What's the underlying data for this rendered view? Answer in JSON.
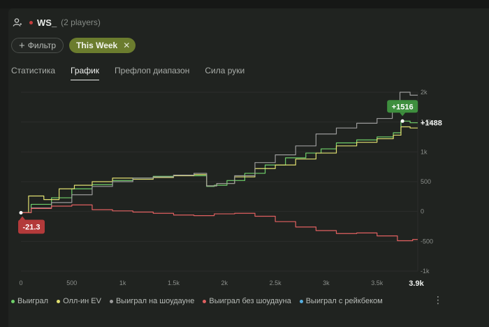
{
  "header": {
    "player_name": "WS_",
    "players_count": "(2 players)",
    "user_icon": "user-icon"
  },
  "filters": {
    "add_filter_label": "Фильтр",
    "active_filter_label": "This Week"
  },
  "tabs": [
    {
      "label": "Статистика",
      "active": false
    },
    {
      "label": "График",
      "active": true
    },
    {
      "label": "Префлоп диапазон",
      "active": false
    },
    {
      "label": "Сила руки",
      "active": false
    }
  ],
  "chart_data": {
    "type": "line",
    "x_ticks": [
      "0",
      "500",
      "1k",
      "1.5k",
      "2k",
      "2.5k",
      "3k",
      "3.5k",
      "3.9k"
    ],
    "y_ticks": [
      "2k",
      "1.5k",
      "1k",
      "500",
      "0",
      "-500",
      "-1k"
    ],
    "xlim": [
      0,
      3900
    ],
    "ylim": [
      -1000,
      2000
    ],
    "x_max_label": "3.9k",
    "callouts": {
      "peak_label": "+1516",
      "end_label": "+1488",
      "start_label": "-21.3"
    },
    "series": [
      {
        "name": "Выиграл",
        "color": "#6fd06a",
        "points": [
          [
            0,
            -21
          ],
          [
            200,
            120
          ],
          [
            400,
            230
          ],
          [
            600,
            380
          ],
          [
            800,
            450
          ],
          [
            1000,
            520
          ],
          [
            1200,
            560
          ],
          [
            1400,
            590
          ],
          [
            1600,
            610
          ],
          [
            1800,
            600
          ],
          [
            1850,
            420
          ],
          [
            1950,
            440
          ],
          [
            2100,
            520
          ],
          [
            2300,
            640
          ],
          [
            2500,
            780
          ],
          [
            2700,
            900
          ],
          [
            2900,
            980
          ],
          [
            3000,
            1050
          ],
          [
            3200,
            1150
          ],
          [
            3400,
            1200
          ],
          [
            3600,
            1250
          ],
          [
            3720,
            1320
          ],
          [
            3750,
            1516
          ],
          [
            3900,
            1488
          ]
        ]
      },
      {
        "name": "Олл-ин EV",
        "color": "#e0e070",
        "points": [
          [
            0,
            -21
          ],
          [
            150,
            260
          ],
          [
            300,
            200
          ],
          [
            450,
            380
          ],
          [
            600,
            440
          ],
          [
            800,
            500
          ],
          [
            1000,
            560
          ],
          [
            1200,
            540
          ],
          [
            1400,
            570
          ],
          [
            1600,
            600
          ],
          [
            1800,
            620
          ],
          [
            1850,
            430
          ],
          [
            2000,
            470
          ],
          [
            2200,
            580
          ],
          [
            2400,
            720
          ],
          [
            2600,
            780
          ],
          [
            2800,
            880
          ],
          [
            3000,
            980
          ],
          [
            3200,
            1100
          ],
          [
            3400,
            1160
          ],
          [
            3600,
            1220
          ],
          [
            3720,
            1280
          ],
          [
            3750,
            1420
          ],
          [
            3900,
            1400
          ]
        ]
      },
      {
        "name": "Выиграл на шоудауне",
        "color": "#9a9a9a",
        "points": [
          [
            0,
            -21
          ],
          [
            200,
            60
          ],
          [
            400,
            150
          ],
          [
            600,
            280
          ],
          [
            800,
            420
          ],
          [
            1000,
            500
          ],
          [
            1200,
            560
          ],
          [
            1400,
            580
          ],
          [
            1600,
            610
          ],
          [
            1800,
            640
          ],
          [
            1850,
            430
          ],
          [
            2000,
            470
          ],
          [
            2200,
            600
          ],
          [
            2400,
            820
          ],
          [
            2600,
            950
          ],
          [
            2800,
            1100
          ],
          [
            3000,
            1300
          ],
          [
            3200,
            1400
          ],
          [
            3400,
            1480
          ],
          [
            3600,
            1560
          ],
          [
            3700,
            1700
          ],
          [
            3750,
            2000
          ],
          [
            3900,
            1950
          ]
        ]
      },
      {
        "name": "Выиграл без шоудауна",
        "color": "#e06060",
        "points": [
          [
            0,
            -21
          ],
          [
            200,
            50
          ],
          [
            400,
            90
          ],
          [
            600,
            110
          ],
          [
            800,
            30
          ],
          [
            1000,
            10
          ],
          [
            1200,
            -10
          ],
          [
            1400,
            -30
          ],
          [
            1600,
            -60
          ],
          [
            1800,
            -70
          ],
          [
            2000,
            -40
          ],
          [
            2200,
            -30
          ],
          [
            2400,
            -80
          ],
          [
            2600,
            -170
          ],
          [
            2800,
            -260
          ],
          [
            3000,
            -320
          ],
          [
            3200,
            -370
          ],
          [
            3400,
            -360
          ],
          [
            3600,
            -410
          ],
          [
            3800,
            -490
          ],
          [
            3900,
            -470
          ]
        ]
      },
      {
        "name": "Выиграл с рейкбеком",
        "color": "#55aee0",
        "points": []
      }
    ]
  }
}
